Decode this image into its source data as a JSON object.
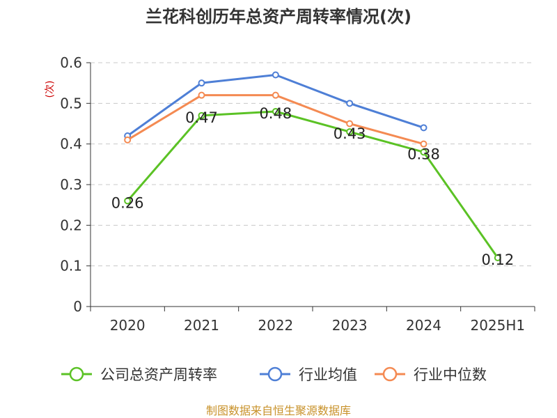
{
  "chart_data": {
    "type": "line",
    "title": "兰花科创历年总资产周转率情况(次)",
    "ylabel": "(次)",
    "categories": [
      "2020",
      "2021",
      "2022",
      "2023",
      "2024",
      "2025H1"
    ],
    "ylim": [
      0,
      0.6
    ],
    "yticks": [
      "0",
      "0.1",
      "0.2",
      "0.3",
      "0.4",
      "0.5",
      "0.6"
    ],
    "grid": true,
    "legend_position": "bottom",
    "series": [
      {
        "name": "公司总资产周转率",
        "color": "#5bc225",
        "values": [
          0.26,
          0.47,
          0.48,
          0.43,
          0.38,
          0.12
        ],
        "labels": [
          "0.26",
          "0.47",
          "0.48",
          "0.43",
          "0.38",
          "0.12"
        ]
      },
      {
        "name": "行业均值",
        "color": "#4e7fd6",
        "values": [
          0.42,
          0.55,
          0.57,
          0.5,
          0.44,
          null
        ]
      },
      {
        "name": "行业中位数",
        "color": "#f48a52",
        "values": [
          0.41,
          0.52,
          0.52,
          0.45,
          0.4,
          null
        ]
      }
    ]
  },
  "source": "制图数据来自恒生聚源数据库"
}
